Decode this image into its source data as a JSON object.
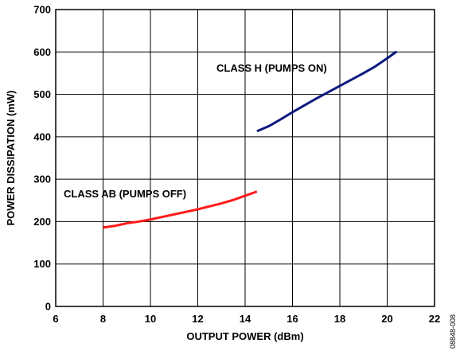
{
  "figure_id": "08848-008",
  "chart_data": {
    "type": "line",
    "title": "",
    "xlabel": "OUTPUT POWER (dBm)",
    "ylabel": "POWER DISSIPATION (mW)",
    "xlim": [
      6,
      22
    ],
    "ylim": [
      0,
      700
    ],
    "x_ticks": [
      "6",
      "8",
      "10",
      "12",
      "14",
      "16",
      "18",
      "20",
      "22"
    ],
    "y_ticks": [
      "0",
      "100",
      "200",
      "300",
      "400",
      "500",
      "600",
      "700"
    ],
    "grid": true,
    "series": [
      {
        "name": "CLASS AB (PUMPS OFF)",
        "color": "#ff1a1a",
        "x": [
          8.0,
          8.5,
          9.0,
          9.5,
          10.0,
          10.5,
          11.0,
          11.5,
          12.0,
          12.5,
          13.0,
          13.5,
          14.0,
          14.5
        ],
        "y": [
          186,
          190,
          196,
          200,
          205,
          211,
          217,
          223,
          229,
          236,
          243,
          251,
          261,
          271
        ]
      },
      {
        "name": "CLASS H (PUMPS ON)",
        "color": "#0d1a80",
        "x": [
          14.5,
          15.0,
          15.5,
          16.0,
          16.5,
          17.0,
          17.5,
          18.0,
          18.5,
          19.0,
          19.5,
          20.0,
          20.4
        ],
        "y": [
          413,
          425,
          441,
          458,
          474,
          490,
          505,
          520,
          535,
          550,
          566,
          585,
          601
        ]
      }
    ],
    "annotations": [
      "CLASS H (PUMPS ON)",
      "CLASS AB (PUMPS OFF)"
    ]
  }
}
